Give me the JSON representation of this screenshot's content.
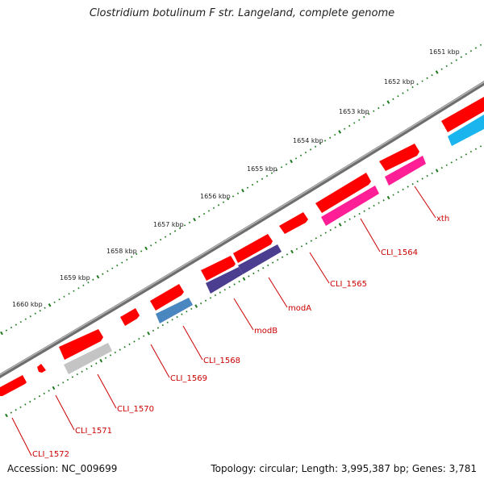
{
  "title": "Clostridium botulinum F str. Langeland, complete genome",
  "footer": {
    "accession": "Accession: NC_009699",
    "summary": "Topology: circular; Length: 3,995,387 bp; Genes: 3,781"
  },
  "colors": {
    "backbone": "#7a7a7a",
    "ticks": "#1e7a1e",
    "gene_forward": "#ff0000",
    "label": "#cc0000",
    "leader": "#cc0000"
  },
  "scale_labels": [
    "1651 kbp",
    "1652 kbp",
    "1653 kbp",
    "1654 kbp",
    "1655 kbp",
    "1656 kbp",
    "1657 kbp",
    "1658 kbp",
    "1659 kbp",
    "1660 kbp"
  ],
  "gene_labels": [
    "CLI_1572",
    "CLI_1571",
    "CLI_1570",
    "CLI_1569",
    "CLI_1568",
    "modB",
    "modA",
    "CLI_1565",
    "CLI_1564",
    "xth"
  ],
  "feature_colors": {
    "CLI_1570": "#c4c4c4",
    "CLI_1568": "#4a86c0",
    "modB": "#4b3d8f",
    "modA": "#4b3d8f",
    "CLI_1564": "#ff1e96",
    "xth": "#ff1e96",
    "unlabeled_right": "#1ab4ee"
  }
}
